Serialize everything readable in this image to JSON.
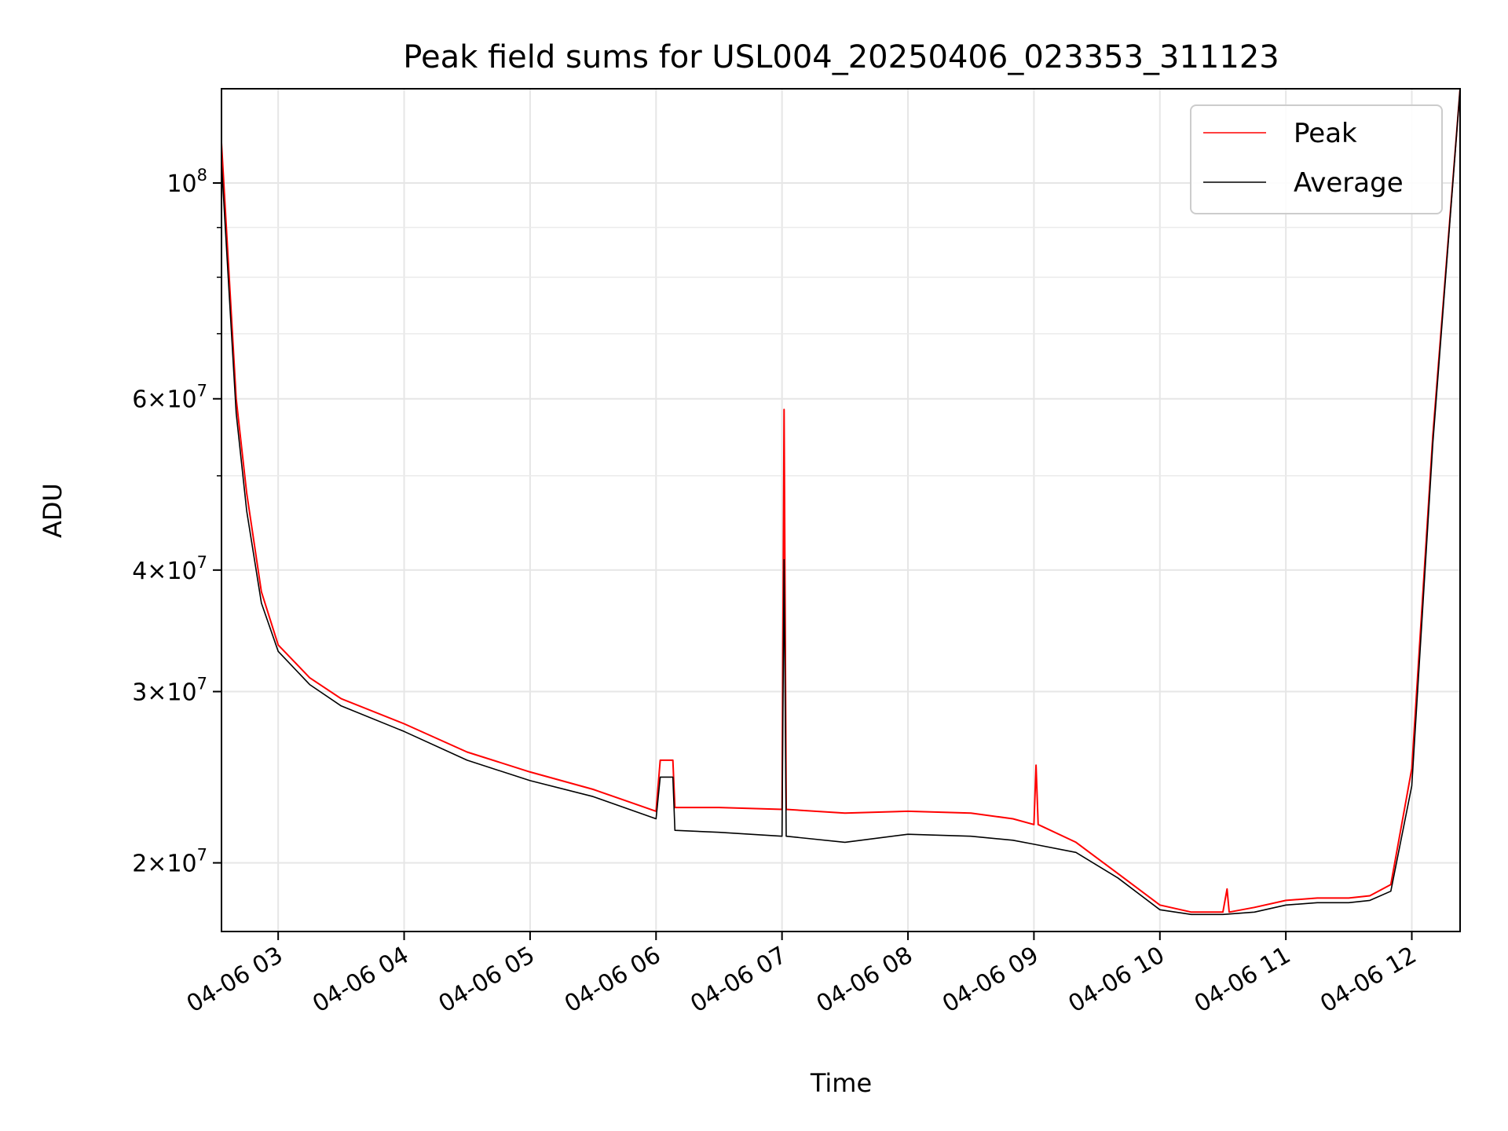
{
  "chart_data": {
    "type": "line",
    "title": "Peak field sums for USL004_20250406_023353_311123",
    "xlabel": "Time",
    "ylabel": "ADU",
    "yscale": "log",
    "grid": true,
    "legend_position": "top-right",
    "xlim": [
      "04-06 02:33",
      "04-06 12:23"
    ],
    "ylim": [
      17000000,
      125000000
    ],
    "x_ticks": [
      "04-06 03",
      "04-06 04",
      "04-06 05",
      "04-06 06",
      "04-06 07",
      "04-06 08",
      "04-06 09",
      "04-06 10",
      "04-06 11",
      "04-06 12"
    ],
    "y_ticks": [
      {
        "value": 100000000,
        "base": "10",
        "exp": "8"
      },
      {
        "value": 60000000,
        "mant": "6",
        "base": "10",
        "exp": "7"
      },
      {
        "value": 40000000,
        "mant": "4",
        "base": "10",
        "exp": "7"
      },
      {
        "value": 30000000,
        "mant": "3",
        "base": "10",
        "exp": "7"
      },
      {
        "value": 20000000,
        "mant": "2",
        "base": "10",
        "exp": "7"
      }
    ],
    "series": [
      {
        "name": "Peak",
        "color": "#ff0000",
        "x": [
          "04-06 02:33",
          "04-06 02:40",
          "04-06 02:45",
          "04-06 02:52",
          "04-06 03:00",
          "04-06 03:15",
          "04-06 03:30",
          "04-06 04:00",
          "04-06 04:30",
          "04-06 05:00",
          "04-06 05:30",
          "04-06 06:00",
          "04-06 06:02",
          "04-06 06:08",
          "04-06 06:09",
          "04-06 06:30",
          "04-06 07:00",
          "04-06 07:01",
          "04-06 07:02",
          "04-06 07:30",
          "04-06 08:00",
          "04-06 08:30",
          "04-06 08:50",
          "04-06 09:00",
          "04-06 09:01",
          "04-06 09:02",
          "04-06 09:20",
          "04-06 09:40",
          "04-06 10:00",
          "04-06 10:15",
          "04-06 10:30",
          "04-06 10:32",
          "04-06 10:33",
          "04-06 10:45",
          "04-06 11:00",
          "04-06 11:15",
          "04-06 11:30",
          "04-06 11:40",
          "04-06 11:50",
          "04-06 12:00",
          "04-06 12:10",
          "04-06 12:23"
        ],
        "values": [
          110000000,
          60000000,
          48000000,
          38000000,
          33500000,
          31000000,
          29500000,
          27800000,
          26000000,
          24800000,
          23800000,
          22600000,
          25500000,
          25500000,
          22800000,
          22800000,
          22700000,
          58500000,
          22700000,
          22500000,
          22600000,
          22500000,
          22200000,
          21900000,
          25200000,
          21900000,
          21000000,
          19500000,
          18100000,
          17800000,
          17800000,
          18800000,
          17800000,
          18000000,
          18300000,
          18400000,
          18400000,
          18500000,
          19000000,
          25000000,
          55000000,
          125000000
        ]
      },
      {
        "name": "Average",
        "color": "#000000",
        "x": [
          "04-06 02:33",
          "04-06 02:40",
          "04-06 02:45",
          "04-06 02:52",
          "04-06 03:00",
          "04-06 03:15",
          "04-06 03:30",
          "04-06 04:00",
          "04-06 04:30",
          "04-06 05:00",
          "04-06 05:30",
          "04-06 06:00",
          "04-06 06:02",
          "04-06 06:08",
          "04-06 06:09",
          "04-06 06:30",
          "04-06 07:00",
          "04-06 07:01",
          "04-06 07:02",
          "04-06 07:30",
          "04-06 08:00",
          "04-06 08:30",
          "04-06 08:50",
          "04-06 09:00",
          "04-06 09:20",
          "04-06 09:40",
          "04-06 10:00",
          "04-06 10:15",
          "04-06 10:30",
          "04-06 10:45",
          "04-06 11:00",
          "04-06 11:15",
          "04-06 11:30",
          "04-06 11:40",
          "04-06 11:50",
          "04-06 12:00",
          "04-06 12:10",
          "04-06 12:23"
        ],
        "values": [
          105000000,
          58000000,
          46000000,
          37000000,
          33000000,
          30500000,
          29000000,
          27300000,
          25500000,
          24300000,
          23400000,
          22200000,
          24500000,
          24500000,
          21600000,
          21500000,
          21300000,
          41000000,
          21300000,
          21000000,
          21400000,
          21300000,
          21100000,
          20900000,
          20500000,
          19300000,
          17900000,
          17700000,
          17700000,
          17800000,
          18100000,
          18200000,
          18200000,
          18300000,
          18700000,
          24000000,
          54000000,
          125000000
        ]
      }
    ]
  }
}
